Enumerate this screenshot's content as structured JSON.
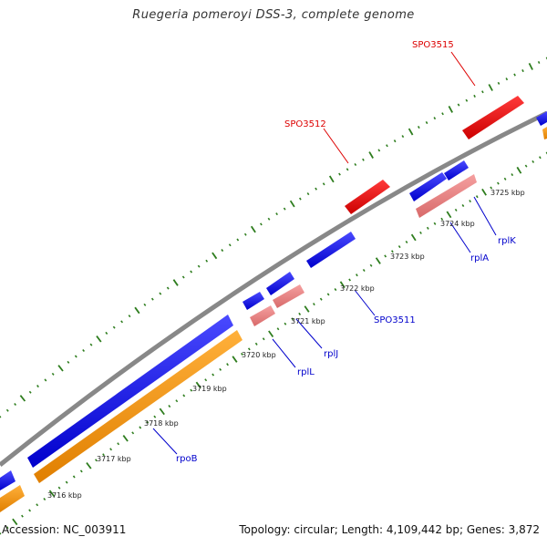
{
  "title": "Ruegeria pomeroyi DSS-3, complete genome",
  "footer": {
    "accession": "Accession: NC_003911",
    "stats": "Topology: circular; Length: 4,109,442 bp; Genes: 3,872"
  },
  "colors": {
    "backbone": "#888888",
    "cds_forward_highlight": "#ff0000",
    "cds_blue": "#0000ff",
    "rna_pink": "#ee8888",
    "orange": "#ff9900",
    "tick": "#2e7d1e",
    "label_blue": "#0000cc",
    "label_red": "#dd0000"
  },
  "kbp_ticks": [
    "3716 kbp",
    "3717 kbp",
    "3718 kbp",
    "3719 kbp",
    "3720 kbp",
    "3721 kbp",
    "3722 kbp",
    "3723 kbp",
    "3724 kbp",
    "3725 kbp"
  ],
  "gene_labels": [
    {
      "text": "SPO3515",
      "color": "red"
    },
    {
      "text": "SPO3512",
      "color": "red"
    },
    {
      "text": "SPO3511",
      "color": "blue"
    },
    {
      "text": "rplK",
      "color": "blue"
    },
    {
      "text": "rplA",
      "color": "blue"
    },
    {
      "text": "rplJ",
      "color": "blue"
    },
    {
      "text": "rplL",
      "color": "blue"
    },
    {
      "text": "rpoB",
      "color": "blue"
    }
  ]
}
